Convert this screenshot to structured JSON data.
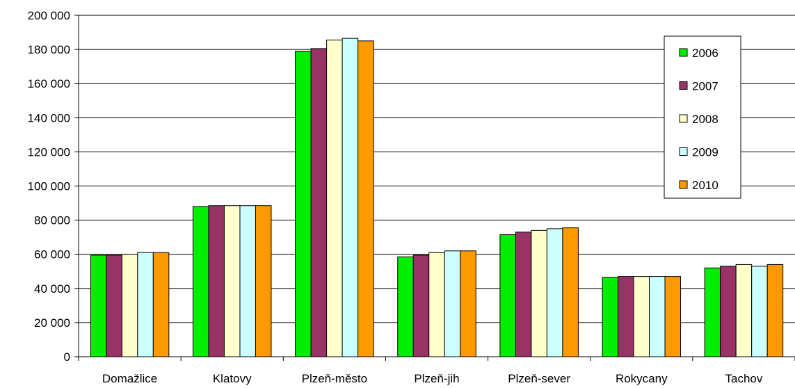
{
  "chart_data": {
    "type": "bar",
    "title": "",
    "xlabel": "",
    "ylabel": "",
    "ylim": [
      0,
      200000
    ],
    "yticks": [
      0,
      20000,
      40000,
      60000,
      80000,
      100000,
      120000,
      140000,
      160000,
      180000,
      200000
    ],
    "ytick_labels": [
      "0",
      "20 000",
      "40 000",
      "60 000",
      "80 000",
      "100 000",
      "120 000",
      "140 000",
      "160 000",
      "180 000",
      "200 000"
    ],
    "grid": true,
    "legend_position": "top-right",
    "categories": [
      "Domažlice",
      "Klatovy",
      "Plzeň-město",
      "Plzeň-jih",
      "Plzeň-sever",
      "Rokycany",
      "Tachov"
    ],
    "series": [
      {
        "name": "2006",
        "color": "#00ee00",
        "values": [
          59500,
          88000,
          179000,
          58500,
          71500,
          46500,
          52000
        ]
      },
      {
        "name": "2007",
        "color": "#993366",
        "values": [
          59500,
          88500,
          180500,
          59500,
          73000,
          47000,
          53000
        ]
      },
      {
        "name": "2008",
        "color": "#ffffcc",
        "values": [
          60000,
          88500,
          185500,
          61000,
          74000,
          47000,
          54000
        ]
      },
      {
        "name": "2009",
        "color": "#ccffff",
        "values": [
          61000,
          88500,
          186500,
          62000,
          75000,
          47000,
          53000
        ]
      },
      {
        "name": "2010",
        "color": "#ff9900",
        "values": [
          61000,
          88500,
          185000,
          62000,
          75500,
          47000,
          54000
        ]
      }
    ]
  }
}
